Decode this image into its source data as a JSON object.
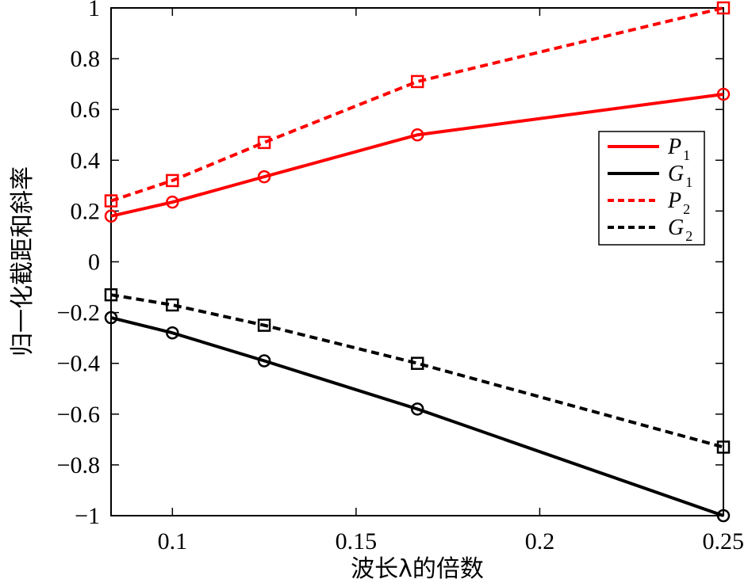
{
  "chart_data": {
    "type": "line",
    "title": "",
    "xlabel": "波长λ的倍数",
    "ylabel": "归一化截距和斜率",
    "xlim": [
      0.0833,
      0.25
    ],
    "ylim": [
      -1,
      1
    ],
    "xticks": [
      0.1,
      0.15,
      0.2,
      0.25
    ],
    "xtick_labels": [
      "0.1",
      "0.15",
      "0.2",
      "0.25"
    ],
    "yticks": [
      -1,
      -0.8,
      -0.6,
      -0.4,
      -0.2,
      0,
      0.2,
      0.4,
      0.6,
      0.8,
      1
    ],
    "ytick_labels": [
      "−1",
      "−0.8",
      "−0.6",
      "−0.4",
      "−0.2",
      "0",
      "0.2",
      "0.4",
      "0.6",
      "0.8",
      "1"
    ],
    "grid": false,
    "legend_position": "right",
    "x": [
      0.0833,
      0.1,
      0.125,
      0.1667,
      0.25
    ],
    "series": [
      {
        "name": "P1",
        "label_main": "P",
        "label_sub": "1",
        "values": [
          0.18,
          0.235,
          0.335,
          0.5,
          0.66
        ],
        "color": "#ff0000",
        "dash": "solid",
        "marker": "circle"
      },
      {
        "name": "G1",
        "label_main": "G",
        "label_sub": "1",
        "values": [
          -0.22,
          -0.28,
          -0.39,
          -0.58,
          -1.0
        ],
        "color": "#000000",
        "dash": "solid",
        "marker": "circle"
      },
      {
        "name": "P2",
        "label_main": "P",
        "label_sub": "2",
        "values": [
          0.24,
          0.32,
          0.47,
          0.71,
          1.0
        ],
        "color": "#ff0000",
        "dash": "dashed",
        "marker": "square"
      },
      {
        "name": "G2",
        "label_main": "G",
        "label_sub": "2",
        "values": [
          -0.13,
          -0.17,
          -0.25,
          -0.4,
          -0.73
        ],
        "color": "#000000",
        "dash": "dashed",
        "marker": "square"
      }
    ]
  }
}
